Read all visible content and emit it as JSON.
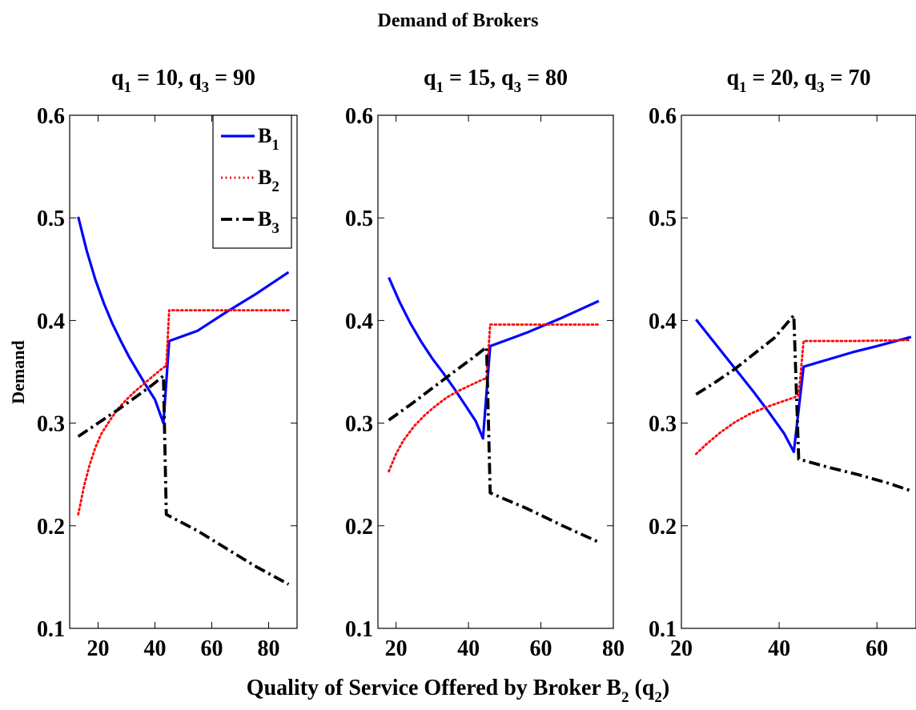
{
  "chart_data": {
    "type": "line",
    "title": "Demand of Brokers",
    "ylabel": "Demand",
    "xlabel": {
      "main": "Quality of Service Offered by Broker B",
      "sub": "2",
      "paren_open": " (q",
      "paren_sub": "2",
      "paren_close": ")"
    },
    "legend": {
      "placement": "top-right of first panel",
      "entries": [
        {
          "main": "B",
          "sub": "1"
        },
        {
          "main": "B",
          "sub": "2"
        },
        {
          "main": "B",
          "sub": "3"
        }
      ]
    },
    "series_styles": [
      {
        "name": "B1",
        "color": "#0000ff",
        "dash": "solid"
      },
      {
        "name": "B2",
        "color": "#ff0000",
        "dash": "dotted"
      },
      {
        "name": "B3",
        "color": "#000000",
        "dash": "dashdot"
      }
    ],
    "grid": false,
    "panels": [
      {
        "title": {
          "q": "q",
          "s1": "1",
          "mid": " =  10, q",
          "s3": "3",
          "end": " = 90"
        },
        "xlim": [
          10,
          90
        ],
        "ylim": [
          0.1,
          0.6
        ],
        "xticks": [
          20,
          40,
          60,
          80
        ],
        "xtick_labels": [
          "20",
          "40",
          "60",
          "80"
        ],
        "yticks": [
          0.1,
          0.2,
          0.3,
          0.4,
          0.5,
          0.6
        ],
        "ytick_labels": [
          "0.1",
          "0.2",
          "0.3",
          "0.4",
          "0.5",
          "0.6"
        ],
        "series": [
          {
            "name": "B1",
            "points": [
              [
                13,
                0.501
              ],
              [
                16,
                0.468
              ],
              [
                19,
                0.44
              ],
              [
                22,
                0.417
              ],
              [
                25,
                0.397
              ],
              [
                28,
                0.38
              ],
              [
                31,
                0.364
              ],
              [
                34,
                0.35
              ],
              [
                37,
                0.336
              ],
              [
                40,
                0.323
              ],
              [
                43,
                0.3
              ],
              [
                45,
                0.38
              ],
              [
                55,
                0.39
              ],
              [
                65,
                0.408
              ],
              [
                75,
                0.425
              ],
              [
                87,
                0.447
              ]
            ]
          },
          {
            "name": "B2",
            "points": [
              [
                13,
                0.211
              ],
              [
                15,
                0.238
              ],
              [
                17,
                0.259
              ],
              [
                19,
                0.276
              ],
              [
                21,
                0.289
              ],
              [
                24,
                0.302
              ],
              [
                27,
                0.314
              ],
              [
                30,
                0.323
              ],
              [
                33,
                0.331
              ],
              [
                36,
                0.338
              ],
              [
                39,
                0.345
              ],
              [
                42,
                0.352
              ],
              [
                44,
                0.356
              ],
              [
                45,
                0.41
              ],
              [
                60,
                0.41
              ],
              [
                75,
                0.41
              ],
              [
                87,
                0.41
              ]
            ]
          },
          {
            "name": "B3",
            "points": [
              [
                13,
                0.287
              ],
              [
                20,
                0.3
              ],
              [
                27,
                0.313
              ],
              [
                34,
                0.327
              ],
              [
                39,
                0.337
              ],
              [
                43,
                0.346
              ],
              [
                44,
                0.211
              ],
              [
                55,
                0.195
              ],
              [
                65,
                0.178
              ],
              [
                75,
                0.161
              ],
              [
                87,
                0.143
              ]
            ]
          }
        ]
      },
      {
        "title": {
          "q": "q",
          "s1": "1",
          "mid": " =  15, q",
          "s3": "3",
          "end": " = 80"
        },
        "xlim": [
          15,
          80
        ],
        "ylim": [
          0.1,
          0.6
        ],
        "xticks": [
          20,
          40,
          60,
          80
        ],
        "xtick_labels": [
          "20",
          "40",
          "60",
          "80"
        ],
        "yticks": [
          0.1,
          0.2,
          0.3,
          0.4,
          0.5,
          0.6
        ],
        "ytick_labels": [
          "0.1",
          "0.2",
          "0.3",
          "0.4",
          "0.5",
          "0.6"
        ],
        "series": [
          {
            "name": "B1",
            "points": [
              [
                18,
                0.442
              ],
              [
                21,
                0.418
              ],
              [
                24,
                0.397
              ],
              [
                27,
                0.379
              ],
              [
                30,
                0.363
              ],
              [
                33,
                0.349
              ],
              [
                36,
                0.334
              ],
              [
                39,
                0.318
              ],
              [
                42,
                0.302
              ],
              [
                44,
                0.285
              ],
              [
                46,
                0.375
              ],
              [
                56,
                0.388
              ],
              [
                66,
                0.403
              ],
              [
                76,
                0.419
              ]
            ]
          },
          {
            "name": "B2",
            "points": [
              [
                18,
                0.253
              ],
              [
                20,
                0.27
              ],
              [
                22,
                0.283
              ],
              [
                25,
                0.297
              ],
              [
                28,
                0.308
              ],
              [
                31,
                0.317
              ],
              [
                34,
                0.325
              ],
              [
                37,
                0.331
              ],
              [
                40,
                0.336
              ],
              [
                43,
                0.341
              ],
              [
                45,
                0.344
              ],
              [
                46,
                0.396
              ],
              [
                56,
                0.396
              ],
              [
                66,
                0.396
              ],
              [
                76,
                0.396
              ]
            ]
          },
          {
            "name": "B3",
            "points": [
              [
                18,
                0.303
              ],
              [
                24,
                0.318
              ],
              [
                30,
                0.334
              ],
              [
                36,
                0.35
              ],
              [
                41,
                0.363
              ],
              [
                45,
                0.374
              ],
              [
                46,
                0.232
              ],
              [
                56,
                0.217
              ],
              [
                66,
                0.2
              ],
              [
                76,
                0.184
              ]
            ]
          }
        ]
      },
      {
        "title": {
          "q": "q",
          "s1": "1",
          "mid": " =  20, q",
          "s3": "3",
          "end": " = 70"
        },
        "xlim": [
          20,
          68
        ],
        "ylim": [
          0.1,
          0.6
        ],
        "xticks": [
          20,
          40,
          60
        ],
        "xtick_labels": [
          "20",
          "40",
          "60"
        ],
        "yticks": [
          0.1,
          0.2,
          0.3,
          0.4,
          0.5,
          0.6
        ],
        "ytick_labels": [
          "0.1",
          "0.2",
          "0.3",
          "0.4",
          "0.5",
          "0.6"
        ],
        "series": [
          {
            "name": "B1",
            "points": [
              [
                23,
                0.401
              ],
              [
                26,
                0.383
              ],
              [
                29,
                0.365
              ],
              [
                32,
                0.347
              ],
              [
                35,
                0.329
              ],
              [
                38,
                0.31
              ],
              [
                41,
                0.29
              ],
              [
                43,
                0.272
              ],
              [
                45,
                0.355
              ],
              [
                50,
                0.362
              ],
              [
                55,
                0.369
              ],
              [
                60,
                0.375
              ],
              [
                67,
                0.384
              ]
            ]
          },
          {
            "name": "B2",
            "points": [
              [
                23,
                0.27
              ],
              [
                25,
                0.279
              ],
              [
                28,
                0.291
              ],
              [
                31,
                0.301
              ],
              [
                34,
                0.309
              ],
              [
                37,
                0.315
              ],
              [
                40,
                0.32
              ],
              [
                43,
                0.325
              ],
              [
                44,
                0.327
              ],
              [
                45,
                0.38
              ],
              [
                55,
                0.38
              ],
              [
                67,
                0.381
              ]
            ]
          },
          {
            "name": "B3",
            "points": [
              [
                23,
                0.328
              ],
              [
                27,
                0.34
              ],
              [
                31,
                0.353
              ],
              [
                35,
                0.368
              ],
              [
                39,
                0.383
              ],
              [
                43,
                0.405
              ],
              [
                44,
                0.265
              ],
              [
                50,
                0.257
              ],
              [
                56,
                0.25
              ],
              [
                62,
                0.242
              ],
              [
                67,
                0.234
              ]
            ]
          }
        ]
      }
    ]
  }
}
